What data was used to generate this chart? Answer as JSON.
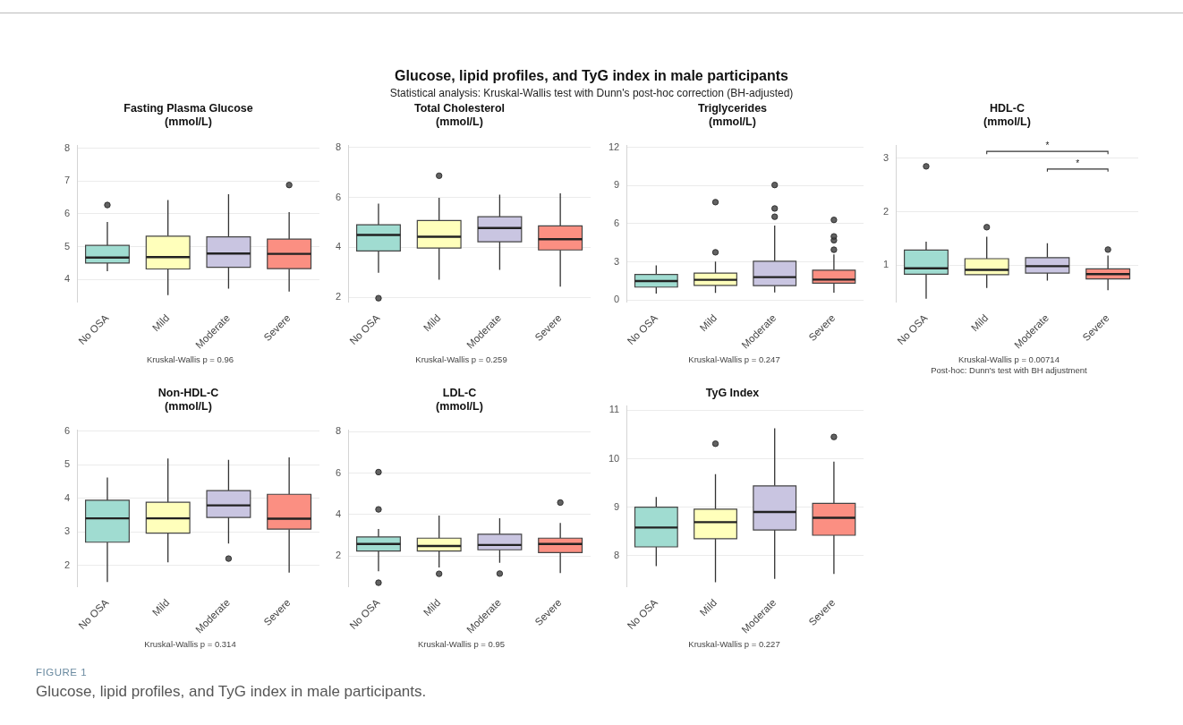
{
  "chart_data": [
    {
      "type": "other",
      "title": "Glucose, lipid profiles, and TyG index in male participants",
      "subtitle": "Statistical analysis: Kruskal-Wallis test with Dunn's post-hoc correction (BH-adjusted)"
    },
    {
      "type": "box",
      "title": "Fasting Plasma Glucose",
      "subtitle": "(mmol/L)",
      "categories": [
        "No OSA",
        "Mild",
        "Moderate",
        "Severe"
      ],
      "colors": [
        "#a0dcd1",
        "#ffffbb",
        "#c9c5e1",
        "#fb8f82"
      ],
      "ylim": [
        3.3,
        8.1
      ],
      "yticks": [
        4,
        5,
        6,
        7,
        8
      ],
      "grid": "y",
      "boxes": [
        {
          "low": 4.25,
          "q1": 4.5,
          "median": 4.67,
          "q3": 5.04,
          "high": 5.75,
          "outliers": [
            6.27
          ]
        },
        {
          "low": 3.52,
          "q1": 4.32,
          "median": 4.68,
          "q3": 5.32,
          "high": 6.42
        },
        {
          "low": 3.72,
          "q1": 4.37,
          "median": 4.79,
          "q3": 5.3,
          "high": 6.6
        },
        {
          "low": 3.63,
          "q1": 4.33,
          "median": 4.78,
          "q3": 5.23,
          "high": 6.05,
          "outliers": [
            6.88
          ]
        }
      ],
      "annotations": [
        "Kruskal-Wallis p = 0.96"
      ]
    },
    {
      "type": "box",
      "title": "Total Cholesterol",
      "subtitle": "(mmol/L)",
      "categories": [
        "No OSA",
        "Mild",
        "Moderate",
        "Severe"
      ],
      "colors": [
        "#a0dcd1",
        "#ffffbb",
        "#c9c5e1",
        "#fb8f82"
      ],
      "ylim": [
        1.8,
        8.1
      ],
      "yticks": [
        2,
        4,
        6,
        8
      ],
      "grid": "y",
      "boxes": [
        {
          "low": 2.99,
          "q1": 3.86,
          "median": 4.5,
          "q3": 4.91,
          "high": 5.75,
          "outliers": [
            1.97
          ]
        },
        {
          "low": 2.71,
          "q1": 3.98,
          "median": 4.43,
          "q3": 5.08,
          "high": 5.99,
          "outliers": [
            6.87
          ]
        },
        {
          "low": 3.1,
          "q1": 4.23,
          "median": 4.78,
          "q3": 5.23,
          "high": 6.11
        },
        {
          "low": 2.43,
          "q1": 3.9,
          "median": 4.33,
          "q3": 4.86,
          "high": 6.17
        }
      ],
      "annotations": [
        "Kruskal-Wallis p = 0.259"
      ]
    },
    {
      "type": "box",
      "title": "Triglycerides",
      "subtitle": "(mmol/L)",
      "categories": [
        "No OSA",
        "Mild",
        "Moderate",
        "Severe"
      ],
      "colors": [
        "#a0dcd1",
        "#ffffbb",
        "#c9c5e1",
        "#fb8f82"
      ],
      "ylim": [
        -0.2,
        12.2
      ],
      "yticks": [
        0,
        3,
        6,
        9,
        12
      ],
      "grid": "y",
      "boxes": [
        {
          "low": 0.49,
          "q1": 1.01,
          "median": 1.48,
          "q3": 2.0,
          "high": 2.72
        },
        {
          "low": 0.55,
          "q1": 1.14,
          "median": 1.58,
          "q3": 2.11,
          "high": 3.02,
          "outliers": [
            3.75,
            7.7
          ]
        },
        {
          "low": 0.59,
          "q1": 1.12,
          "median": 1.79,
          "q3": 3.04,
          "high": 5.86,
          "outliers": [
            6.55,
            7.2,
            9.05
          ]
        },
        {
          "low": 0.57,
          "q1": 1.31,
          "median": 1.6,
          "q3": 2.34,
          "high": 3.59,
          "outliers": [
            3.95,
            4.7,
            5.0,
            6.3
          ]
        }
      ],
      "annotations": [
        "Kruskal-Wallis p = 0.247"
      ]
    },
    {
      "type": "box",
      "title": "HDL-C",
      "subtitle": "(mmol/L)",
      "categories": [
        "No OSA",
        "Mild",
        "Moderate",
        "Severe"
      ],
      "colors": [
        "#a0dcd1",
        "#ffffbb",
        "#c9c5e1",
        "#fb8f82"
      ],
      "ylim": [
        0.3,
        3.25
      ],
      "yticks": [
        1,
        2,
        3
      ],
      "grid": "y",
      "boxes": [
        {
          "low": 0.37,
          "q1": 0.83,
          "median": 0.94,
          "q3": 1.28,
          "high": 1.44,
          "outliers": [
            2.85
          ]
        },
        {
          "low": 0.57,
          "q1": 0.82,
          "median": 0.91,
          "q3": 1.12,
          "high": 1.53,
          "outliers": [
            1.71
          ]
        },
        {
          "low": 0.71,
          "q1": 0.85,
          "median": 0.98,
          "q3": 1.14,
          "high": 1.41
        },
        {
          "low": 0.53,
          "q1": 0.74,
          "median": 0.83,
          "q3": 0.93,
          "high": 1.18,
          "outliers": [
            1.29
          ]
        }
      ],
      "annotations": [
        "Kruskal-Wallis p = 0.00714",
        "Post-hoc: Dunn's test with BH adjustment",
        "*",
        "*"
      ]
    },
    {
      "type": "box",
      "title": "Non-HDL-C",
      "subtitle": "(mmol/L)",
      "categories": [
        "No OSA",
        "Mild",
        "Moderate",
        "Severe"
      ],
      "colors": [
        "#a0dcd1",
        "#ffffbb",
        "#c9c5e1",
        "#fb8f82"
      ],
      "ylim": [
        1.35,
        6.05
      ],
      "yticks": [
        2,
        3,
        4,
        5,
        6
      ],
      "grid": "y",
      "boxes": [
        {
          "low": 1.5,
          "q1": 2.69,
          "median": 3.4,
          "q3": 3.94,
          "high": 4.62
        },
        {
          "low": 2.09,
          "q1": 2.96,
          "median": 3.4,
          "q3": 3.88,
          "high": 5.19
        },
        {
          "low": 2.65,
          "q1": 3.43,
          "median": 3.79,
          "q3": 4.23,
          "high": 5.15,
          "outliers": [
            2.2
          ]
        },
        {
          "low": 1.78,
          "q1": 3.08,
          "median": 3.39,
          "q3": 4.12,
          "high": 5.22
        }
      ],
      "annotations": [
        "Kruskal-Wallis p = 0.314"
      ]
    },
    {
      "type": "box",
      "title": "LDL-C",
      "subtitle": "(mmol/L)",
      "categories": [
        "No OSA",
        "Mild",
        "Moderate",
        "Severe"
      ],
      "colors": [
        "#a0dcd1",
        "#ffffbb",
        "#c9c5e1",
        "#fb8f82"
      ],
      "ylim": [
        0.5,
        8.1
      ],
      "yticks": [
        2,
        4,
        6,
        8
      ],
      "grid": "y",
      "boxes": [
        {
          "low": 1.26,
          "q1": 2.24,
          "median": 2.58,
          "q3": 2.92,
          "high": 3.3,
          "outliers": [
            0.71,
            4.25,
            6.05
          ]
        },
        {
          "low": 1.45,
          "q1": 2.24,
          "median": 2.48,
          "q3": 2.86,
          "high": 3.95,
          "outliers": [
            1.14
          ]
        },
        {
          "low": 1.67,
          "q1": 2.3,
          "median": 2.53,
          "q3": 3.05,
          "high": 3.82,
          "outliers": [
            1.15
          ]
        },
        {
          "low": 1.18,
          "q1": 2.16,
          "median": 2.58,
          "q3": 2.86,
          "high": 3.6,
          "outliers": [
            4.58
          ]
        }
      ],
      "annotations": [
        "Kruskal-Wallis p = 0.95"
      ]
    },
    {
      "type": "box",
      "title": "TyG Index",
      "categories": [
        "No OSA",
        "Mild",
        "Moderate",
        "Severe"
      ],
      "colors": [
        "#a0dcd1",
        "#ffffbb",
        "#c9c5e1",
        "#fb8f82"
      ],
      "ylim": [
        7.35,
        11.1
      ],
      "yticks": [
        8,
        9,
        10,
        11
      ],
      "grid": "y",
      "boxes": [
        {
          "low": 7.78,
          "q1": 8.18,
          "median": 8.58,
          "q3": 9.0,
          "high": 9.21
        },
        {
          "low": 7.45,
          "q1": 8.35,
          "median": 8.69,
          "q3": 8.96,
          "high": 9.68,
          "outliers": [
            10.31
          ]
        },
        {
          "low": 7.52,
          "q1": 8.53,
          "median": 8.9,
          "q3": 9.44,
          "high": 10.63
        },
        {
          "low": 7.62,
          "q1": 8.42,
          "median": 8.78,
          "q3": 9.08,
          "high": 9.94,
          "outliers": [
            10.45
          ]
        }
      ],
      "annotations": [
        "Kruskal-Wallis p = 0.227"
      ]
    },
    {
      "type": "other",
      "annotations": [
        "FIGURE 1",
        "Glucose, lipid profiles, and TyG index in male participants."
      ]
    }
  ]
}
